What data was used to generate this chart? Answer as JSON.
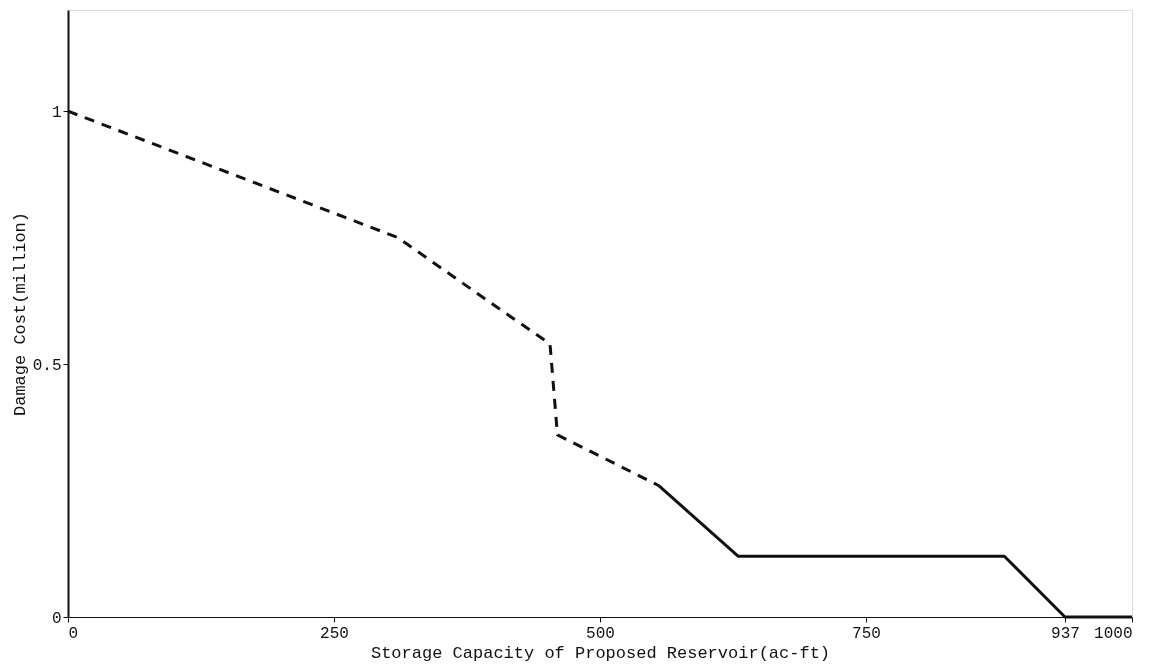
{
  "chart_data": {
    "type": "line",
    "xlabel": "Storage Capacity of Proposed Reservoir(ac-ft)",
    "ylabel": "Damage Cost(million)",
    "xlim": [
      0,
      1000
    ],
    "xticks": [
      0,
      250,
      500,
      750,
      937,
      1000
    ],
    "ylim": [
      0,
      1.2
    ],
    "yticks": [
      0,
      0.5,
      1
    ],
    "grid": false,
    "legend": false,
    "series": [
      {
        "color": "#111111",
        "line_style": "dashed",
        "x": [
          0,
          310,
          398,
          453,
          460,
          555
        ],
        "values": [
          1.0,
          0.75,
          0.62,
          0.54,
          0.36,
          0.26
        ]
      },
      {
        "color": "#111111",
        "line_style": "solid",
        "x": [
          555,
          630,
          880,
          937,
          1000
        ],
        "values": [
          0.26,
          0.12,
          0.12,
          0,
          0
        ]
      }
    ]
  }
}
